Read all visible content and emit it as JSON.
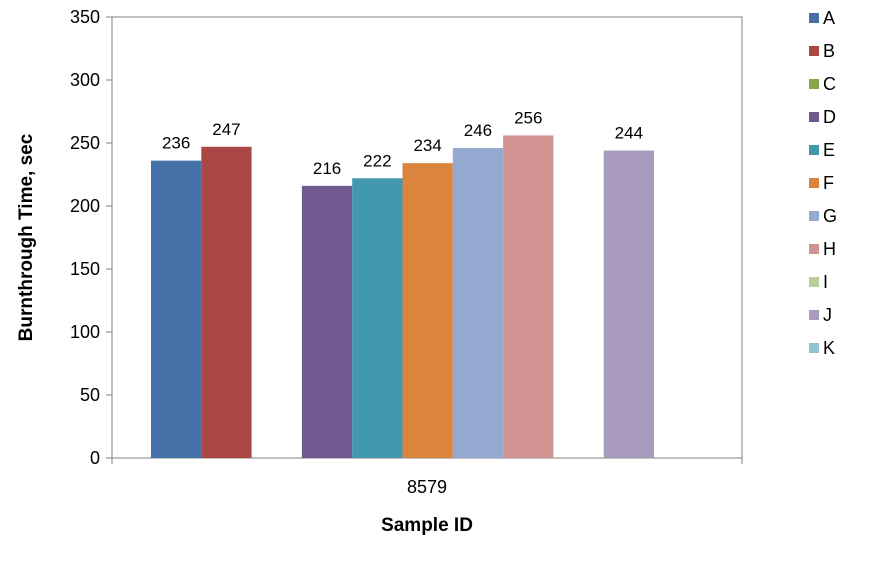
{
  "chart_data": {
    "type": "bar",
    "categories": [
      "8579"
    ],
    "series": [
      {
        "name": "A",
        "values": [
          236
        ],
        "color": "#4472A8",
        "label": "236"
      },
      {
        "name": "B",
        "values": [
          247
        ],
        "color": "#AA4643",
        "label": "247"
      },
      {
        "name": "C",
        "values": [
          null
        ],
        "color": "#89A54E",
        "label": ""
      },
      {
        "name": "D",
        "values": [
          216
        ],
        "color": "#71588F",
        "label": "216"
      },
      {
        "name": "E",
        "values": [
          222
        ],
        "color": "#4198AF",
        "label": "222"
      },
      {
        "name": "F",
        "values": [
          234
        ],
        "color": "#DB843D",
        "label": "234"
      },
      {
        "name": "G",
        "values": [
          246
        ],
        "color": "#93A9CF",
        "label": "246"
      },
      {
        "name": "H",
        "values": [
          256
        ],
        "color": "#D19392",
        "label": "256"
      },
      {
        "name": "I",
        "values": [
          null
        ],
        "color": "#B9CD96",
        "label": ""
      },
      {
        "name": "J",
        "values": [
          244
        ],
        "color": "#A99BBD",
        "label": "244"
      },
      {
        "name": "K",
        "values": [
          null
        ],
        "color": "#92C3D4",
        "label": ""
      }
    ],
    "xlabel": "Sample ID",
    "ylabel": "Burnthrough Time, sec",
    "ylim": [
      0,
      350
    ],
    "yticks": [
      "0",
      "50",
      "100",
      "150",
      "200",
      "250",
      "300",
      "350"
    ],
    "grid": false,
    "legend_position": "right"
  }
}
